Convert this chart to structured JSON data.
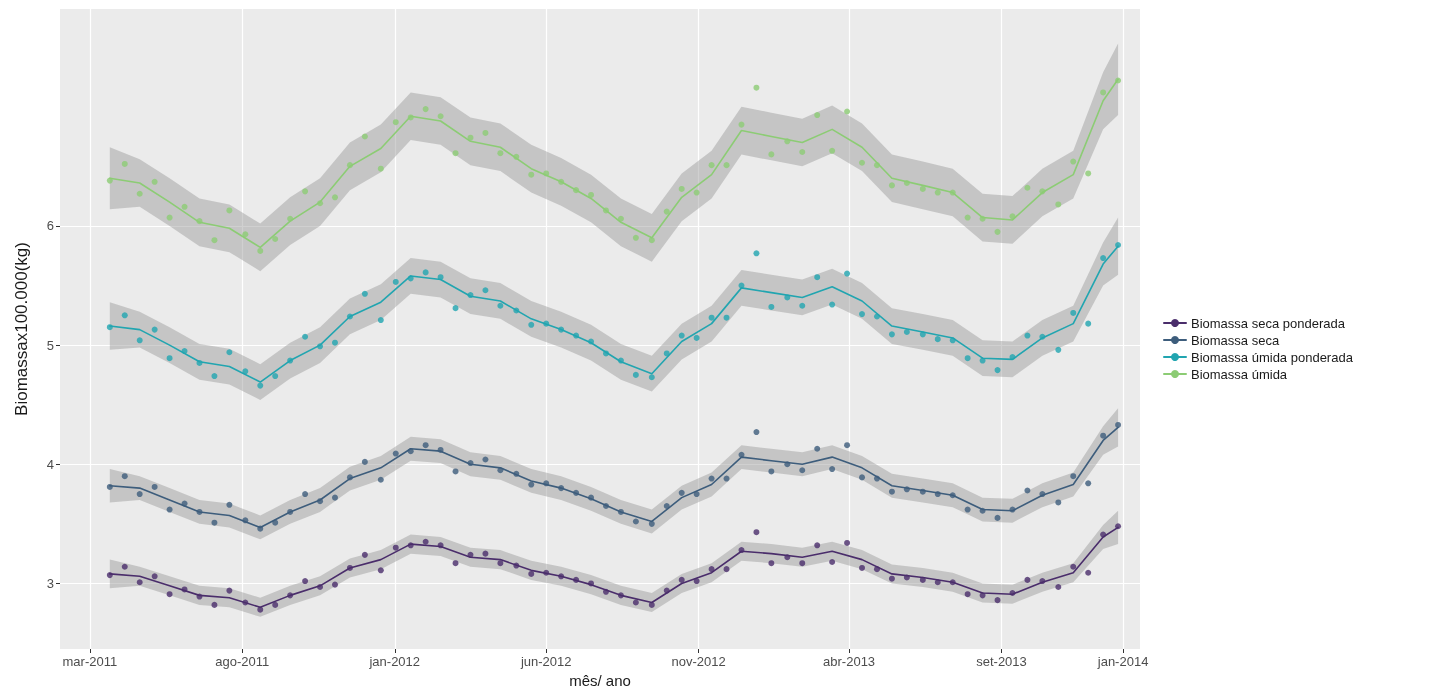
{
  "chart_data": {
    "type": "scatter",
    "xlabel": "mês/ ano",
    "ylabel": "Biomassax100.000(kg)",
    "xlim": [
      "2011-01-30",
      "2014-01-18"
    ],
    "xticks": [
      {
        "value": "2011-03-01",
        "label": "mar-2011"
      },
      {
        "value": "2011-08-01",
        "label": "ago-2011"
      },
      {
        "value": "2012-01-01",
        "label": "jan-2012"
      },
      {
        "value": "2012-06-01",
        "label": "jun-2012"
      },
      {
        "value": "2012-11-01",
        "label": "nov-2012"
      },
      {
        "value": "2013-04-01",
        "label": "abr-2013"
      },
      {
        "value": "2013-09-01",
        "label": "set-2013"
      },
      {
        "value": "2014-01-01",
        "label": "jan-2014"
      }
    ],
    "ylim": [
      2.45,
      7.82
    ],
    "yticks": [
      3,
      4,
      5,
      6
    ],
    "grid": true,
    "legend": "right",
    "x": [
      "2011-03-21",
      "2011-04-05",
      "2011-04-20",
      "2011-05-05",
      "2011-05-20",
      "2011-06-04",
      "2011-06-19",
      "2011-07-04",
      "2011-07-19",
      "2011-08-04",
      "2011-08-19",
      "2011-09-03",
      "2011-09-18",
      "2011-10-03",
      "2011-10-18",
      "2011-11-02",
      "2011-11-17",
      "2011-12-02",
      "2011-12-18",
      "2012-01-02",
      "2012-01-17",
      "2012-02-01",
      "2012-02-16",
      "2012-03-02",
      "2012-03-17",
      "2012-04-01",
      "2012-04-16",
      "2012-05-02",
      "2012-05-17",
      "2012-06-01",
      "2012-06-16",
      "2012-07-01",
      "2012-07-16",
      "2012-07-31",
      "2012-08-15",
      "2012-08-30",
      "2012-09-15",
      "2012-09-30",
      "2012-10-15",
      "2012-10-30",
      "2012-11-14",
      "2012-11-29",
      "2012-12-14",
      "2012-12-29",
      "2013-01-13",
      "2013-01-29",
      "2013-02-13",
      "2013-02-28",
      "2013-03-15",
      "2013-03-30",
      "2013-04-14",
      "2013-04-29",
      "2013-05-14",
      "2013-05-29",
      "2013-06-14",
      "2013-06-29",
      "2013-07-14",
      "2013-07-29",
      "2013-08-13",
      "2013-08-28",
      "2013-09-12",
      "2013-09-27",
      "2013-10-12",
      "2013-10-28",
      "2013-11-12",
      "2013-11-27",
      "2013-12-12",
      "2013-12-27"
    ],
    "series": [
      {
        "name": "Biomassa seca ponderada",
        "type": "line",
        "marker": "none",
        "color": "#4a2d6b",
        "x": [
          "2011-03-21",
          "2011-04-20",
          "2011-05-20",
          "2011-06-19",
          "2011-07-19",
          "2011-08-19",
          "2011-09-18",
          "2011-10-18",
          "2011-11-17",
          "2011-12-18",
          "2012-01-17",
          "2012-02-16",
          "2012-03-17",
          "2012-04-16",
          "2012-05-17",
          "2012-06-16",
          "2012-07-16",
          "2012-08-15",
          "2012-09-15",
          "2012-10-15",
          "2012-11-14",
          "2012-12-14",
          "2013-01-13",
          "2013-02-13",
          "2013-03-15",
          "2013-04-14",
          "2013-05-14",
          "2013-06-14",
          "2013-07-14",
          "2013-08-13",
          "2013-09-12",
          "2013-10-12",
          "2013-11-12",
          "2013-12-12",
          "2013-12-27"
        ],
        "values": [
          3.08,
          3.06,
          2.98,
          2.9,
          2.88,
          2.8,
          2.9,
          2.98,
          3.13,
          3.2,
          3.33,
          3.31,
          3.22,
          3.2,
          3.11,
          3.06,
          2.99,
          2.9,
          2.84,
          3.0,
          3.09,
          3.27,
          3.25,
          3.22,
          3.27,
          3.2,
          3.08,
          3.05,
          3.01,
          2.92,
          2.91,
          3.01,
          3.09,
          3.39,
          3.47
        ],
        "lower": [
          2.96,
          2.98,
          2.9,
          2.82,
          2.8,
          2.72,
          2.82,
          2.9,
          3.05,
          3.12,
          3.25,
          3.23,
          3.14,
          3.12,
          3.03,
          2.98,
          2.91,
          2.82,
          2.76,
          2.92,
          3.01,
          3.19,
          3.17,
          3.14,
          3.19,
          3.12,
          3.0,
          2.97,
          2.93,
          2.84,
          2.83,
          2.93,
          3.01,
          3.29,
          3.33
        ],
        "upper": [
          3.2,
          3.14,
          3.06,
          2.98,
          2.96,
          2.88,
          2.98,
          3.06,
          3.21,
          3.28,
          3.41,
          3.39,
          3.3,
          3.28,
          3.19,
          3.14,
          3.07,
          2.98,
          2.92,
          3.08,
          3.17,
          3.35,
          3.33,
          3.3,
          3.35,
          3.28,
          3.16,
          3.13,
          3.09,
          3.0,
          2.99,
          3.09,
          3.17,
          3.49,
          3.61
        ]
      },
      {
        "name": "Biomassa seca",
        "type": "line",
        "marker": "none",
        "color": "#3d5d7c",
        "x": [
          "2011-03-21",
          "2011-04-20",
          "2011-05-20",
          "2011-06-19",
          "2011-07-19",
          "2011-08-19",
          "2011-09-18",
          "2011-10-18",
          "2011-11-17",
          "2011-12-18",
          "2012-01-17",
          "2012-02-16",
          "2012-03-17",
          "2012-04-16",
          "2012-05-17",
          "2012-06-16",
          "2012-07-16",
          "2012-08-15",
          "2012-09-15",
          "2012-10-15",
          "2012-11-14",
          "2012-12-14",
          "2013-01-13",
          "2013-02-13",
          "2013-03-15",
          "2013-04-14",
          "2013-05-14",
          "2013-06-14",
          "2013-07-14",
          "2013-08-13",
          "2013-09-12",
          "2013-10-12",
          "2013-11-12",
          "2013-12-12",
          "2013-12-27"
        ],
        "values": [
          3.82,
          3.8,
          3.7,
          3.6,
          3.57,
          3.47,
          3.6,
          3.7,
          3.88,
          3.97,
          4.13,
          4.11,
          4.0,
          3.97,
          3.86,
          3.8,
          3.71,
          3.6,
          3.52,
          3.72,
          3.83,
          4.06,
          4.03,
          4.0,
          4.06,
          3.97,
          3.82,
          3.78,
          3.74,
          3.62,
          3.61,
          3.74,
          3.83,
          4.2,
          4.31
        ],
        "lower": [
          3.68,
          3.7,
          3.6,
          3.5,
          3.47,
          3.37,
          3.5,
          3.6,
          3.78,
          3.87,
          4.03,
          4.01,
          3.9,
          3.87,
          3.76,
          3.7,
          3.61,
          3.5,
          3.42,
          3.62,
          3.73,
          3.96,
          3.93,
          3.9,
          3.96,
          3.87,
          3.72,
          3.68,
          3.64,
          3.52,
          3.51,
          3.64,
          3.73,
          4.08,
          4.15
        ],
        "upper": [
          3.96,
          3.9,
          3.8,
          3.7,
          3.67,
          3.57,
          3.7,
          3.8,
          3.98,
          4.07,
          4.23,
          4.21,
          4.1,
          4.07,
          3.96,
          3.9,
          3.81,
          3.7,
          3.62,
          3.82,
          3.93,
          4.16,
          4.13,
          4.1,
          4.16,
          4.07,
          3.92,
          3.88,
          3.84,
          3.72,
          3.71,
          3.84,
          3.93,
          4.32,
          4.47
        ]
      },
      {
        "name": "Biomassa úmida ponderada",
        "type": "line",
        "marker": "none",
        "color": "#21a5b0",
        "x": [
          "2011-03-21",
          "2011-04-20",
          "2011-05-20",
          "2011-06-19",
          "2011-07-19",
          "2011-08-19",
          "2011-09-18",
          "2011-10-18",
          "2011-11-17",
          "2011-12-18",
          "2012-01-17",
          "2012-02-16",
          "2012-03-17",
          "2012-04-16",
          "2012-05-17",
          "2012-06-16",
          "2012-07-16",
          "2012-08-15",
          "2012-09-15",
          "2012-10-15",
          "2012-11-14",
          "2012-12-14",
          "2013-01-13",
          "2013-02-13",
          "2013-03-15",
          "2013-04-14",
          "2013-05-14",
          "2013-06-14",
          "2013-07-14",
          "2013-08-13",
          "2013-09-12",
          "2013-10-12",
          "2013-11-12",
          "2013-12-12",
          "2013-12-27"
        ],
        "values": [
          5.16,
          5.13,
          5.0,
          4.86,
          4.82,
          4.69,
          4.87,
          5.0,
          5.24,
          5.36,
          5.58,
          5.55,
          5.41,
          5.37,
          5.22,
          5.13,
          5.02,
          4.86,
          4.76,
          5.03,
          5.18,
          5.48,
          5.44,
          5.4,
          5.49,
          5.37,
          5.16,
          5.11,
          5.06,
          4.89,
          4.88,
          5.06,
          5.18,
          5.68,
          5.83
        ],
        "lower": [
          4.96,
          4.98,
          4.85,
          4.71,
          4.67,
          4.54,
          4.72,
          4.85,
          5.09,
          5.21,
          5.43,
          5.4,
          5.26,
          5.22,
          5.07,
          4.98,
          4.87,
          4.71,
          4.61,
          4.88,
          5.03,
          5.33,
          5.29,
          5.25,
          5.34,
          5.22,
          5.01,
          4.96,
          4.91,
          4.74,
          4.73,
          4.91,
          5.03,
          5.5,
          5.59
        ],
        "upper": [
          5.36,
          5.28,
          5.15,
          5.01,
          4.97,
          4.84,
          5.02,
          5.15,
          5.39,
          5.51,
          5.73,
          5.7,
          5.56,
          5.52,
          5.37,
          5.28,
          5.17,
          5.01,
          4.91,
          5.18,
          5.33,
          5.63,
          5.59,
          5.55,
          5.64,
          5.52,
          5.31,
          5.26,
          5.21,
          5.04,
          5.03,
          5.21,
          5.33,
          5.86,
          6.07
        ]
      },
      {
        "name": "Biomassa úmida",
        "type": "line",
        "marker": "none",
        "color": "#8ccc74",
        "x": [
          "2011-03-21",
          "2011-04-20",
          "2011-05-20",
          "2011-06-19",
          "2011-07-19",
          "2011-08-19",
          "2011-09-18",
          "2011-10-18",
          "2011-11-17",
          "2011-12-18",
          "2012-01-17",
          "2012-02-16",
          "2012-03-17",
          "2012-04-16",
          "2012-05-17",
          "2012-06-16",
          "2012-07-16",
          "2012-08-15",
          "2012-09-15",
          "2012-10-15",
          "2012-11-14",
          "2012-12-14",
          "2013-01-13",
          "2013-02-13",
          "2013-03-15",
          "2013-04-14",
          "2013-05-14",
          "2013-06-14",
          "2013-07-14",
          "2013-08-13",
          "2013-09-12",
          "2013-10-12",
          "2013-11-12",
          "2013-12-12",
          "2013-12-27"
        ],
        "values": [
          6.4,
          6.36,
          6.2,
          6.03,
          5.98,
          5.82,
          6.04,
          6.2,
          6.5,
          6.65,
          6.92,
          6.88,
          6.71,
          6.66,
          6.48,
          6.37,
          6.23,
          6.03,
          5.9,
          6.24,
          6.43,
          6.8,
          6.75,
          6.7,
          6.81,
          6.66,
          6.4,
          6.34,
          6.28,
          6.07,
          6.05,
          6.28,
          6.43,
          7.05,
          7.23
        ],
        "lower": [
          6.14,
          6.16,
          6.0,
          5.83,
          5.78,
          5.62,
          5.84,
          6.0,
          6.3,
          6.45,
          6.72,
          6.68,
          6.51,
          6.46,
          6.28,
          6.17,
          6.03,
          5.83,
          5.7,
          6.04,
          6.23,
          6.6,
          6.55,
          6.5,
          6.61,
          6.46,
          6.2,
          6.14,
          6.08,
          5.87,
          5.85,
          6.08,
          6.23,
          6.81,
          6.93
        ],
        "upper": [
          6.66,
          6.56,
          6.4,
          6.23,
          6.18,
          6.02,
          6.24,
          6.4,
          6.7,
          6.85,
          7.12,
          7.08,
          6.91,
          6.86,
          6.68,
          6.57,
          6.43,
          6.23,
          6.1,
          6.44,
          6.63,
          7.0,
          6.95,
          6.9,
          7.01,
          6.86,
          6.6,
          6.54,
          6.48,
          6.27,
          6.25,
          6.48,
          6.63,
          7.29,
          7.53
        ]
      },
      {
        "marker": "circle",
        "color": "#4a2d6b",
        "values": [
          3.07,
          3.14,
          3.01,
          3.06,
          2.91,
          2.95,
          2.89,
          2.82,
          2.94,
          2.84,
          2.78,
          2.82,
          2.9,
          3.02,
          2.97,
          2.99,
          3.13,
          3.24,
          3.11,
          3.3,
          3.32,
          3.35,
          3.32,
          3.17,
          3.24,
          3.25,
          3.17,
          3.15,
          3.08,
          3.09,
          3.06,
          3.03,
          3.0,
          2.93,
          2.9,
          2.84,
          2.82,
          2.94,
          3.03,
          3.02,
          3.12,
          3.12,
          3.28,
          3.43,
          3.17,
          3.22,
          3.17,
          3.32,
          3.18,
          3.34,
          3.13,
          3.12,
          3.04,
          3.05,
          3.03,
          3.01,
          3.01,
          2.91,
          2.9,
          2.86,
          2.92,
          3.03,
          3.02,
          2.97,
          3.14,
          3.09,
          3.41,
          3.48
        ]
      },
      {
        "marker": "circle",
        "color": "#3d5d7c",
        "values": [
          3.81,
          3.9,
          3.75,
          3.81,
          3.62,
          3.67,
          3.6,
          3.51,
          3.66,
          3.53,
          3.46,
          3.51,
          3.6,
          3.75,
          3.69,
          3.72,
          3.89,
          4.02,
          3.87,
          4.09,
          4.11,
          4.16,
          4.12,
          3.94,
          4.01,
          4.04,
          3.95,
          3.92,
          3.83,
          3.84,
          3.8,
          3.76,
          3.72,
          3.65,
          3.6,
          3.52,
          3.5,
          3.65,
          3.76,
          3.75,
          3.88,
          3.88,
          4.08,
          4.27,
          3.94,
          4.0,
          3.95,
          4.13,
          3.96,
          4.16,
          3.89,
          3.88,
          3.77,
          3.79,
          3.77,
          3.75,
          3.74,
          3.62,
          3.61,
          3.55,
          3.62,
          3.78,
          3.75,
          3.68,
          3.9,
          3.84,
          4.24,
          4.33
        ]
      },
      {
        "marker": "circle",
        "color": "#21a5b0",
        "values": [
          5.15,
          5.25,
          5.04,
          5.13,
          4.89,
          4.95,
          4.85,
          4.74,
          4.94,
          4.78,
          4.66,
          4.74,
          4.87,
          5.07,
          4.99,
          5.02,
          5.24,
          5.43,
          5.21,
          5.53,
          5.56,
          5.61,
          5.57,
          5.31,
          5.42,
          5.46,
          5.33,
          5.29,
          5.17,
          5.18,
          5.13,
          5.08,
          5.03,
          4.93,
          4.87,
          4.75,
          4.73,
          4.93,
          5.08,
          5.06,
          5.23,
          5.23,
          5.5,
          5.77,
          5.32,
          5.4,
          5.33,
          5.57,
          5.34,
          5.6,
          5.26,
          5.24,
          5.09,
          5.11,
          5.09,
          5.05,
          5.04,
          4.89,
          4.87,
          4.79,
          4.9,
          5.08,
          5.07,
          4.96,
          5.27,
          5.18,
          5.73,
          5.84
        ]
      },
      {
        "marker": "circle",
        "color": "#8ccc74",
        "values": [
          6.38,
          6.52,
          6.27,
          6.37,
          6.07,
          6.16,
          6.04,
          5.88,
          6.13,
          5.93,
          5.79,
          5.89,
          6.06,
          6.29,
          6.19,
          6.24,
          6.51,
          6.75,
          6.48,
          6.87,
          6.91,
          6.98,
          6.92,
          6.61,
          6.74,
          6.78,
          6.61,
          6.58,
          6.43,
          6.44,
          6.37,
          6.3,
          6.26,
          6.13,
          6.06,
          5.9,
          5.88,
          6.12,
          6.31,
          6.28,
          6.51,
          6.51,
          6.85,
          7.16,
          6.6,
          6.71,
          6.62,
          6.93,
          6.63,
          6.96,
          6.53,
          6.51,
          6.34,
          6.36,
          6.31,
          6.28,
          6.28,
          6.07,
          6.06,
          5.95,
          6.08,
          6.32,
          6.29,
          6.18,
          6.54,
          6.44,
          7.12,
          7.22
        ]
      }
    ]
  }
}
